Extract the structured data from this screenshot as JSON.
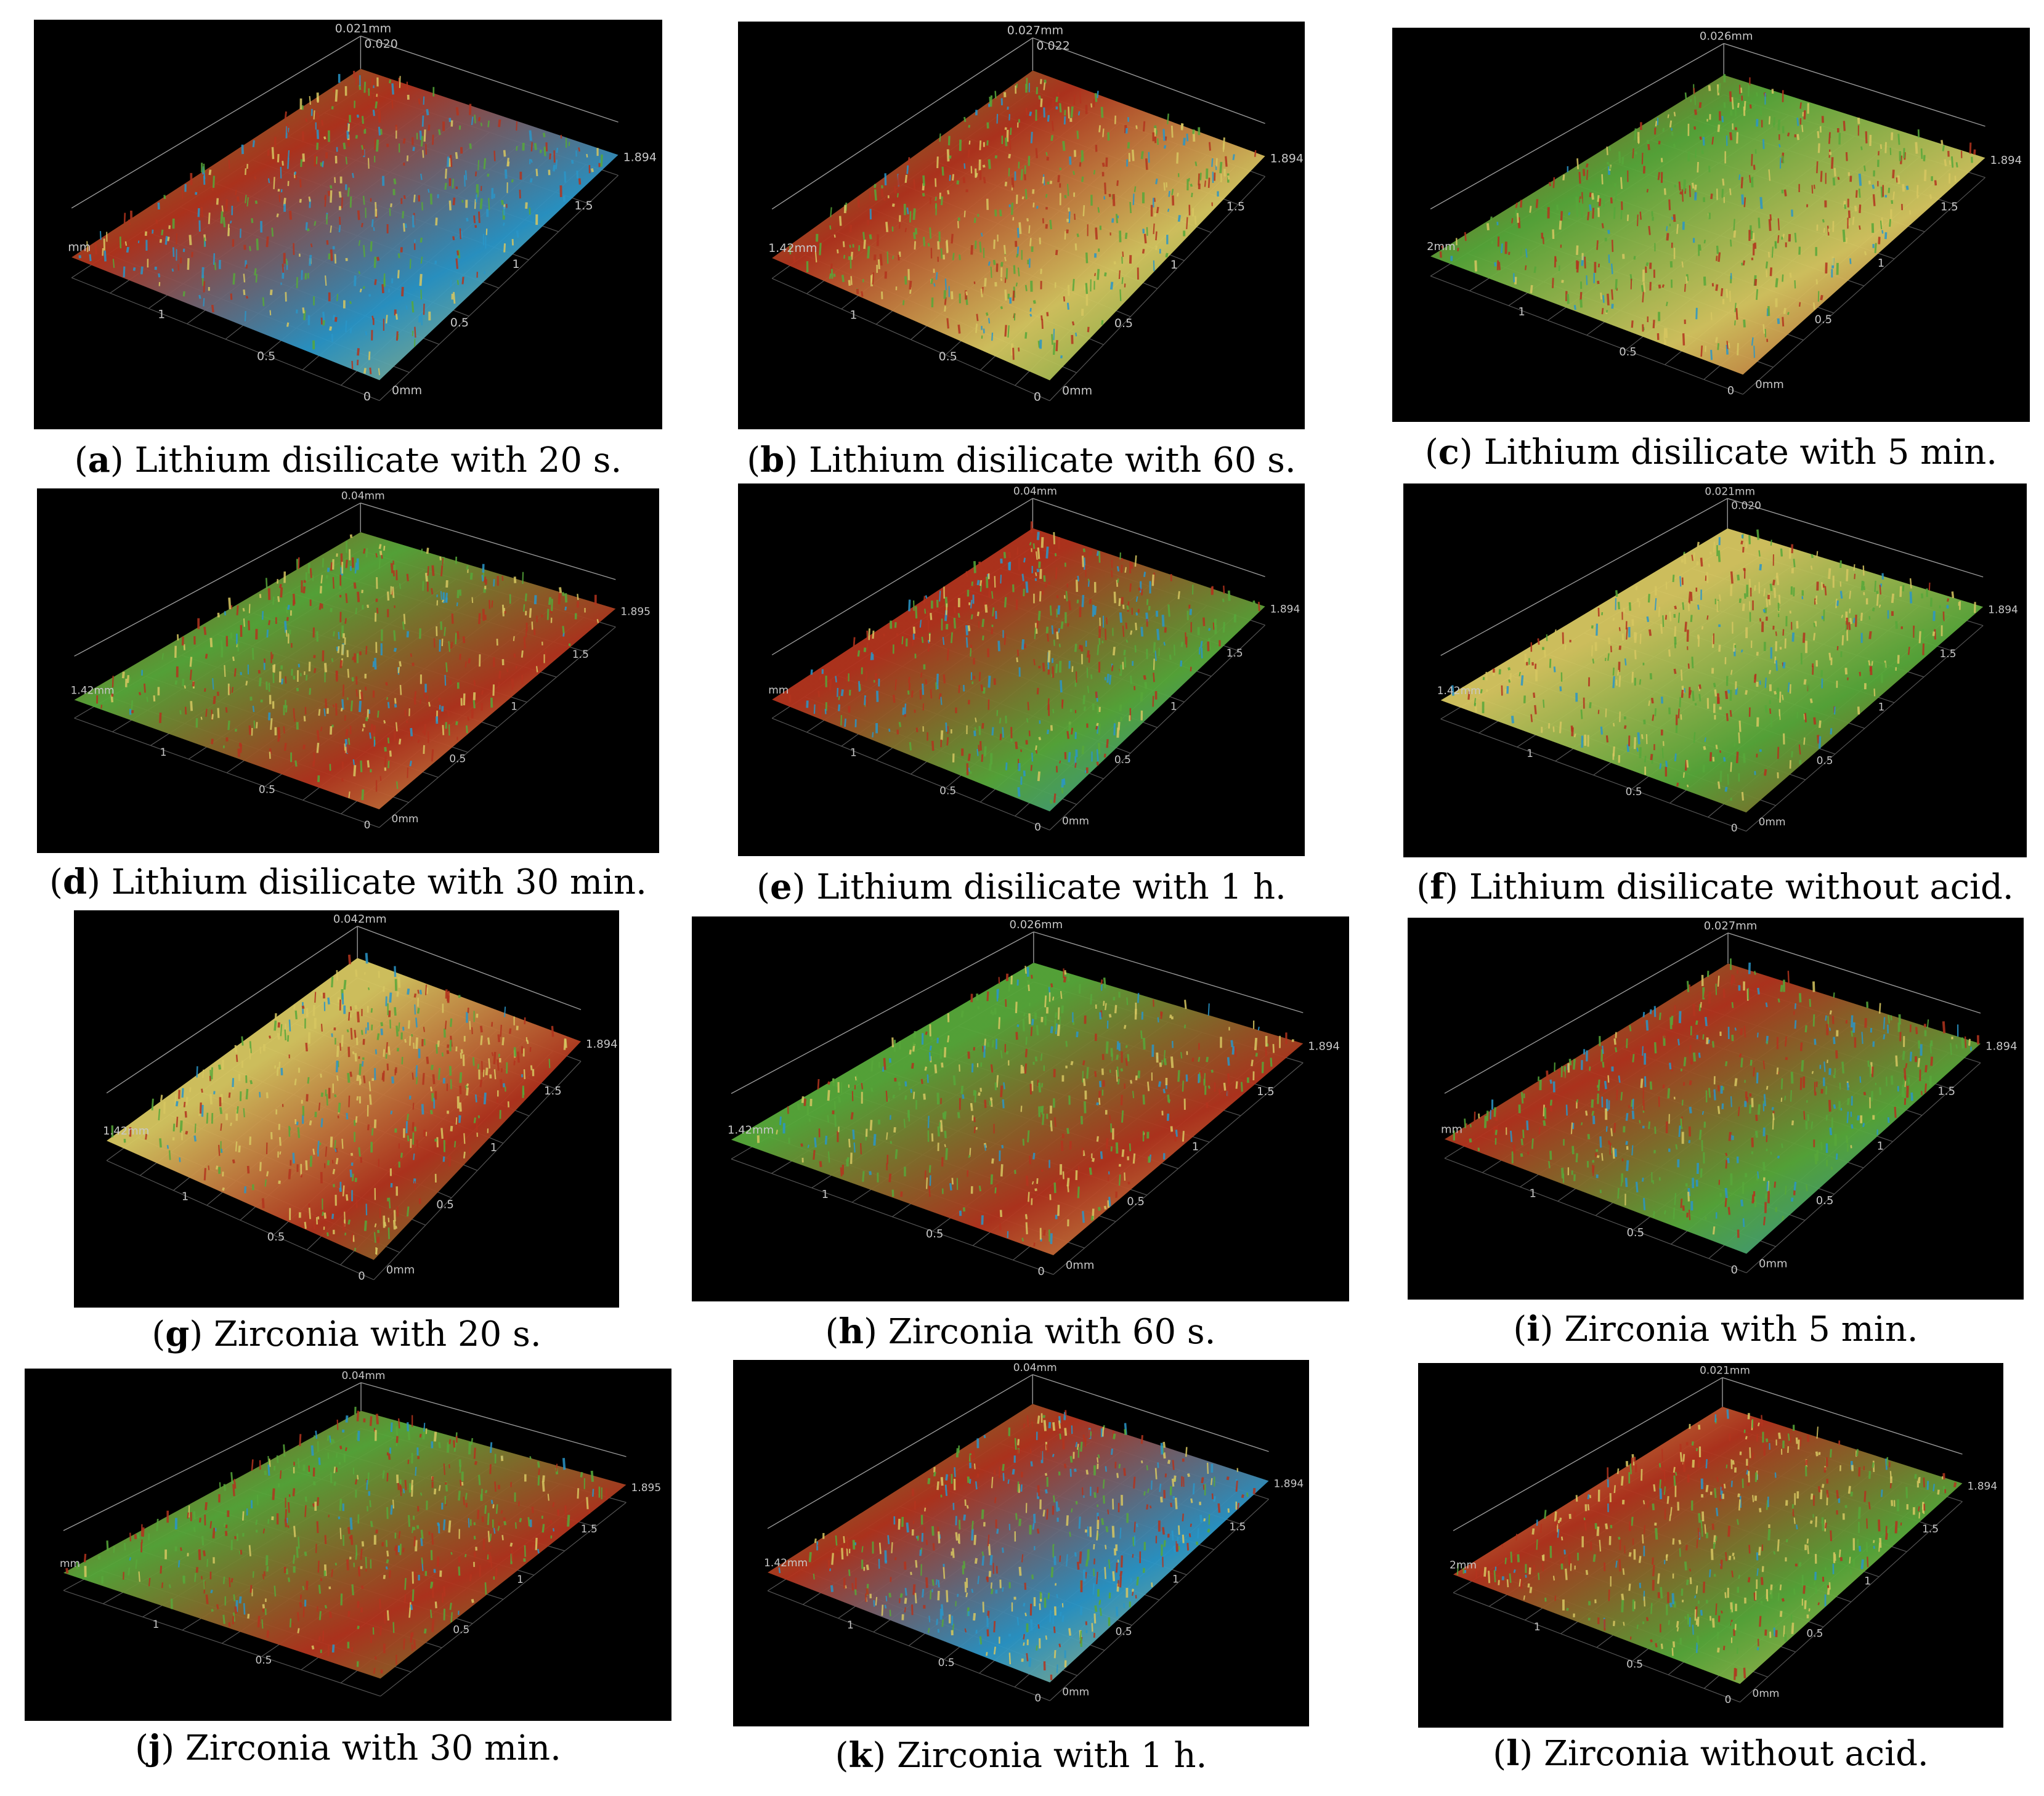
{
  "palette": {
    "background": "#000000",
    "surface_high": "#b3341e",
    "surface_mid": "#57a83a",
    "surface_light": "#d7c761",
    "surface_low": "#2a96c8",
    "axis": "#9a9a9a"
  },
  "panels": [
    {
      "letter": "a",
      "caption": "Lithium disilicate with 20 s.",
      "axis": {
        "z_max": "0.021mm",
        "z_sub": "0.020",
        "left_y": "mm",
        "right_max": "1.894",
        "t15": "1.5",
        "t1": "1",
        "t05": "0.5",
        "zero_a": "0",
        "zero_b": "0mm",
        "bx1": "1",
        "bx05": "0.5"
      }
    },
    {
      "letter": "b",
      "caption": "Lithium disilicate with 60 s.",
      "axis": {
        "z_max": "0.027mm",
        "z_sub": "0.022",
        "left_y": "1.42mm",
        "right_max": "1.894",
        "t15": "1.5",
        "t1": "1",
        "t05": "0.5",
        "zero_a": "0",
        "zero_b": "0mm",
        "bx1": "1",
        "bx05": "0.5"
      }
    },
    {
      "letter": "c",
      "caption": "Lithium disilicate with 5 min.",
      "axis": {
        "z_max": "0.026mm",
        "z_sub": "",
        "left_y": "2mm",
        "right_max": "1.894",
        "t15": "1.5",
        "t1": "1",
        "t05": "0.5",
        "zero_a": "0",
        "zero_b": "0mm",
        "bx1": "1",
        "bx05": "0.5"
      }
    },
    {
      "letter": "d",
      "caption": "Lithium disilicate with 30 min.",
      "axis": {
        "z_max": "0.04mm",
        "z_sub": "",
        "left_y": "1.42mm",
        "right_max": "1.895",
        "t15": "1.5",
        "t1": "1",
        "t05": "0.5",
        "zero_a": "0",
        "zero_b": "0mm",
        "bx1": "1",
        "bx05": "0.5"
      }
    },
    {
      "letter": "e",
      "caption": "Lithium disilicate with 1 h.",
      "axis": {
        "z_max": "0.04mm",
        "z_sub": "",
        "left_y": "mm",
        "right_max": "1.894",
        "t15": "1.5",
        "t1": "1",
        "t05": "0.5",
        "zero_a": "0",
        "zero_b": "0mm",
        "bx1": "1",
        "bx05": "0.5"
      }
    },
    {
      "letter": "f",
      "caption": "Lithium disilicate without acid.",
      "axis": {
        "z_max": "0.021mm",
        "z_sub": "0.020",
        "left_y": "1.42mm",
        "right_max": "1.894",
        "t15": "1.5",
        "t1": "1",
        "t05": "0.5",
        "zero_a": "0",
        "zero_b": "0mm",
        "bx1": "1",
        "bx05": "0.5"
      }
    },
    {
      "letter": "g",
      "caption": "Zirconia with 20 s.",
      "axis": {
        "z_max": "0.042mm",
        "z_sub": "",
        "left_y": "1.42mm",
        "right_max": "1.894",
        "t15": "1.5",
        "t1": "1",
        "t05": "0.5",
        "zero_a": "0",
        "zero_b": "0mm",
        "bx1": "1",
        "bx05": "0.5"
      }
    },
    {
      "letter": "h",
      "caption": "Zirconia with 60 s.",
      "axis": {
        "z_max": "0.026mm",
        "z_sub": "",
        "left_y": "1.42mm",
        "right_max": "1.894",
        "t15": "1.5",
        "t1": "1",
        "t05": "0.5",
        "zero_a": "0",
        "zero_b": "0mm",
        "bx1": "1",
        "bx05": "0.5"
      }
    },
    {
      "letter": "i",
      "caption": "Zirconia with 5 min.",
      "axis": {
        "z_max": "0.027mm",
        "z_sub": "",
        "left_y": "mm",
        "right_max": "1.894",
        "t15": "1.5",
        "t1": "1",
        "t05": "0.5",
        "zero_a": "0",
        "zero_b": "0mm",
        "bx1": "1",
        "bx05": "0.5"
      }
    },
    {
      "letter": "j",
      "caption": "Zirconia with 30 min.",
      "axis": {
        "z_max": "0.04mm",
        "z_sub": "",
        "left_y": "mm",
        "right_max": "1.895",
        "t15": "1.5",
        "t1": "1",
        "t05": "0.5",
        "zero_a": "",
        "zero_b": "",
        "bx1": "1",
        "bx05": "0.5"
      }
    },
    {
      "letter": "k",
      "caption": "Zirconia with 1 h.",
      "axis": {
        "z_max": "0.04mm",
        "z_sub": "",
        "left_y": "1.42mm",
        "right_max": "1.894",
        "t15": "1.5",
        "t1": "1",
        "t05": "0.5",
        "zero_a": "0",
        "zero_b": "0mm",
        "bx1": "1",
        "bx05": "0.5"
      }
    },
    {
      "letter": "l",
      "caption": "Zirconia without acid.",
      "axis": {
        "z_max": "0.021mm",
        "z_sub": "",
        "left_y": "2mm",
        "right_max": "1.894",
        "t15": "1.5",
        "t1": "1",
        "t05": "0.5",
        "zero_a": "0",
        "zero_b": "0mm",
        "bx1": "1",
        "bx05": "0.5"
      }
    }
  ]
}
